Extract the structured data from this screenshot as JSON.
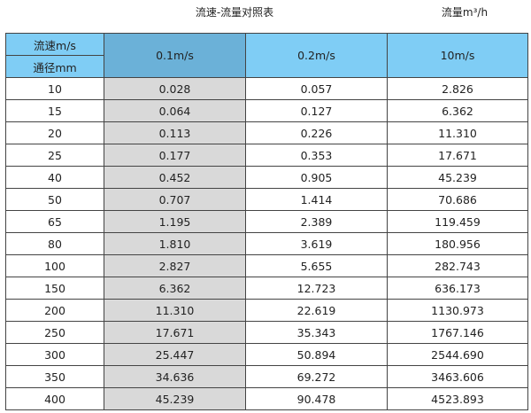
{
  "title": "流速-流量对照表",
  "unit": "流量m³/h",
  "colors": {
    "header": "#7fcdf5",
    "header_highlight": "#6bb1d8",
    "column_highlight": "#d9d9d9"
  },
  "header": {
    "velocity_label": "流速m/s",
    "diameter_label": "通径mm",
    "columns": [
      "0.1m/s",
      "0.2m/s",
      "10m/s"
    ]
  },
  "rows": [
    [
      "10",
      "0.028",
      "0.057",
      "2.826"
    ],
    [
      "15",
      "0.064",
      "0.127",
      "6.362"
    ],
    [
      "20",
      "0.113",
      "0.226",
      "11.310"
    ],
    [
      "25",
      "0.177",
      "0.353",
      "17.671"
    ],
    [
      "40",
      "0.452",
      "0.905",
      "45.239"
    ],
    [
      "50",
      "0.707",
      "1.414",
      "70.686"
    ],
    [
      "65",
      "1.195",
      "2.389",
      "119.459"
    ],
    [
      "80",
      "1.810",
      "3.619",
      "180.956"
    ],
    [
      "100",
      "2.827",
      "5.655",
      "282.743"
    ],
    [
      "150",
      "6.362",
      "12.723",
      "636.173"
    ],
    [
      "200",
      "11.310",
      "22.619",
      "1130.973"
    ],
    [
      "250",
      "17.671",
      "35.343",
      "1767.146"
    ],
    [
      "300",
      "25.447",
      "50.894",
      "2544.690"
    ],
    [
      "350",
      "34.636",
      "69.272",
      "3463.606"
    ],
    [
      "400",
      "45.239",
      "90.478",
      "4523.893"
    ]
  ]
}
